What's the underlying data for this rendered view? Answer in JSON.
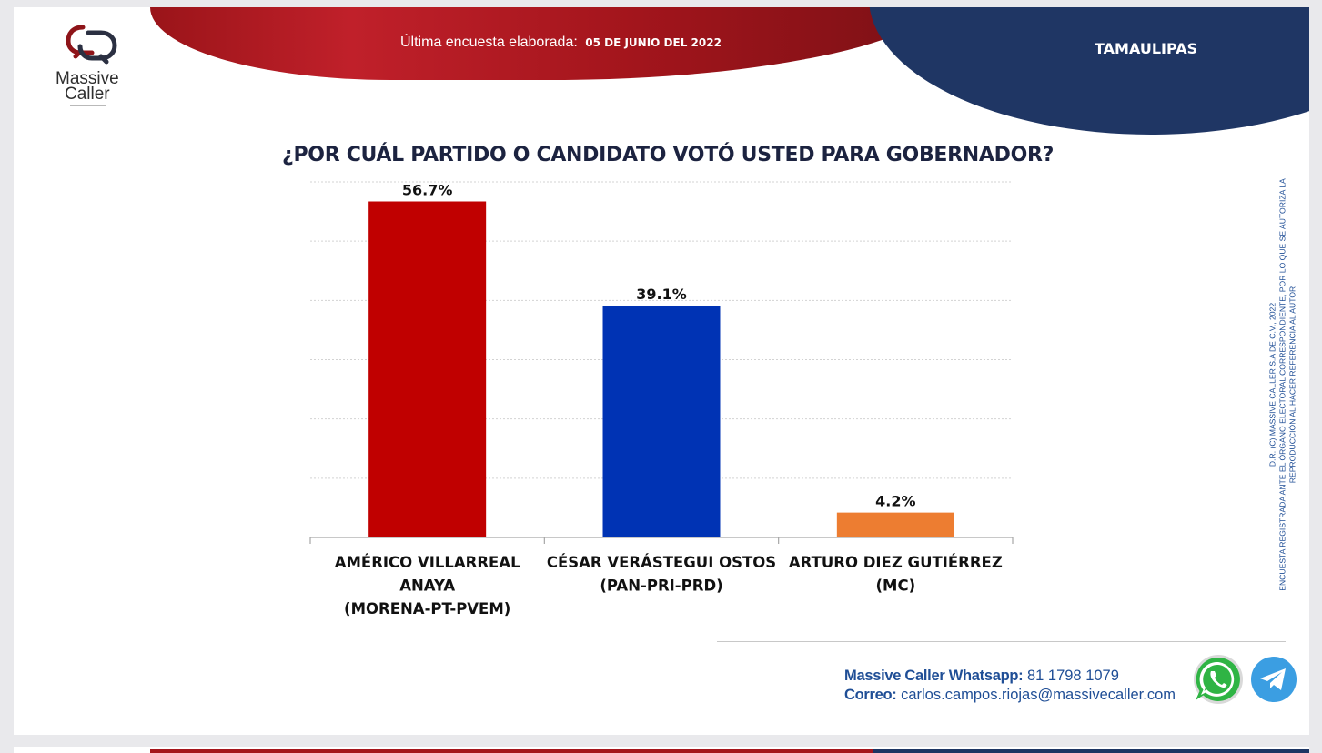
{
  "header": {
    "survey_label": "Última encuesta elaborada:",
    "survey_date": "05 DE JUNIO DEL 2022",
    "region": "TAMAULIPAS"
  },
  "logo": {
    "line1": "Massive",
    "line2": "Caller"
  },
  "chart_data": {
    "type": "bar",
    "title": "¿POR CUÁL PARTIDO O CANDIDATO VOTÓ USTED PARA GOBERNADOR?",
    "categories": [
      [
        "AMÉRICO VILLARREAL",
        "ANAYA",
        "(MORENA-PT-PVEM)"
      ],
      [
        "CÉSAR VERÁSTEGUI OSTOS",
        "(PAN-PRI-PRD)"
      ],
      [
        "ARTURO DIEZ GUTIÉRREZ",
        "(MC)"
      ]
    ],
    "values": [
      56.7,
      39.1,
      4.2
    ],
    "data_labels": [
      "56.7%",
      "39.1%",
      "4.2%"
    ],
    "colors": [
      "#c00000",
      "#0033b4",
      "#ed7d31"
    ],
    "ylim": [
      0,
      60
    ],
    "gridlines": true,
    "xlabel": "",
    "ylabel": ""
  },
  "side_note": {
    "line1": "D.R. (C) MASSIVE CALLER S.A DE C.V., 2022",
    "line2": "ENCUESTA REGISTRADA ANTE EL ÓRGANO ELECTORAL CORRESPONDIENTE, POR LO QUE SE AUTORIZA LA",
    "line3": "REPRODUCCIÓN AL HACER REFERENCIA AL AUTOR"
  },
  "footer": {
    "whatsapp_label": "Massive Caller Whatsapp:",
    "whatsapp_number": "81 1798 1079",
    "email_label": "Correo:",
    "email": "carlos.campos.riojas@massivecaller.com",
    "icons": [
      "whatsapp-icon",
      "telegram-icon"
    ]
  },
  "colors": {
    "header_red": "#a3151c",
    "header_blue": "#1f3664",
    "title_text": "#1c2340",
    "contact_text": "#1f4e96"
  }
}
